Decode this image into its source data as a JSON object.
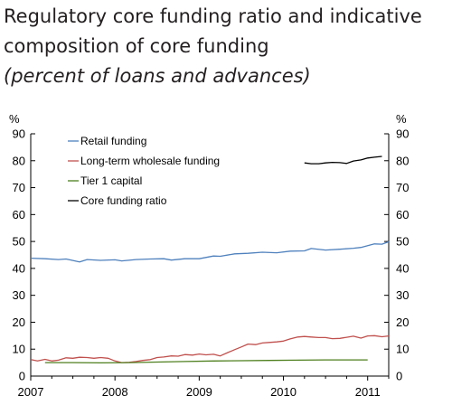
{
  "title_lines": [
    "Regulatory core funding ratio and indicative",
    "composition of core funding"
  ],
  "subtitle": "(percent of loans and advances)",
  "chart_data": {
    "type": "line",
    "title": "Regulatory core funding ratio and indicative composition of core funding",
    "subtitle": "(percent of loans and advances)",
    "xlabel": "",
    "ylabel_left": "%",
    "ylabel_right": "%",
    "xlim": [
      2007,
      2011.25
    ],
    "ylim": [
      0,
      90
    ],
    "x_ticks": [
      2007,
      2008,
      2009,
      2010,
      2011
    ],
    "y_ticks": [
      0,
      10,
      20,
      30,
      40,
      50,
      60,
      70,
      80,
      90
    ],
    "grid": false,
    "legend_position": "top-left",
    "series": [
      {
        "name": "Retail funding",
        "color": "#4f81bd",
        "x": [
          2007.0,
          2007.17,
          2007.33,
          2007.42,
          2007.58,
          2007.67,
          2007.83,
          2008.0,
          2008.08,
          2008.25,
          2008.42,
          2008.58,
          2008.67,
          2008.83,
          2009.0,
          2009.17,
          2009.25,
          2009.42,
          2009.58,
          2009.75,
          2009.92,
          2010.08,
          2010.25,
          2010.33,
          2010.5,
          2010.67,
          2010.83,
          2010.92,
          2011.08,
          2011.17,
          2011.25
        ],
        "y": [
          43.8,
          43.6,
          43.3,
          43.5,
          42.4,
          43.3,
          43.0,
          43.2,
          42.8,
          43.3,
          43.5,
          43.6,
          43.1,
          43.6,
          43.6,
          44.6,
          44.5,
          45.4,
          45.6,
          46.0,
          45.8,
          46.4,
          46.5,
          47.4,
          46.8,
          47.1,
          47.5,
          47.8,
          49.1,
          49.0,
          49.9
        ]
      },
      {
        "name": "Long-term wholesale funding",
        "color": "#c0504d",
        "x": [
          2007.0,
          2007.08,
          2007.17,
          2007.25,
          2007.33,
          2007.42,
          2007.5,
          2007.58,
          2007.67,
          2007.75,
          2007.83,
          2007.92,
          2008.0,
          2008.08,
          2008.17,
          2008.25,
          2008.33,
          2008.42,
          2008.5,
          2008.58,
          2008.67,
          2008.75,
          2008.83,
          2008.92,
          2009.0,
          2009.08,
          2009.17,
          2009.25,
          2009.33,
          2009.42,
          2009.5,
          2009.58,
          2009.67,
          2009.75,
          2009.83,
          2009.92,
          2010.0,
          2010.08,
          2010.17,
          2010.25,
          2010.33,
          2010.42,
          2010.5,
          2010.58,
          2010.67,
          2010.75,
          2010.83,
          2010.92,
          2011.0,
          2011.08,
          2011.17,
          2011.25
        ],
        "y": [
          6.1,
          5.6,
          6.2,
          5.6,
          5.9,
          6.8,
          6.6,
          7.0,
          6.9,
          6.6,
          6.9,
          6.6,
          5.6,
          5.0,
          5.1,
          5.4,
          5.8,
          6.1,
          6.9,
          7.1,
          7.5,
          7.4,
          8.0,
          7.8,
          8.2,
          7.9,
          8.1,
          7.5,
          8.6,
          9.8,
          10.8,
          11.9,
          11.7,
          12.3,
          12.5,
          12.7,
          13.0,
          13.8,
          14.5,
          14.7,
          14.5,
          14.3,
          14.3,
          13.9,
          14.0,
          14.4,
          14.8,
          14.1,
          14.9,
          15.0,
          14.6,
          14.9
        ]
      },
      {
        "name": "Tier 1 capital",
        "color": "#4e7f1e",
        "x": [
          2007.17,
          2007.5,
          2007.83,
          2008.17,
          2008.5,
          2008.83,
          2009.17,
          2009.5,
          2009.83,
          2010.17,
          2010.5,
          2010.83,
          2011.0
        ],
        "y": [
          5.0,
          5.0,
          4.9,
          5.0,
          5.2,
          5.4,
          5.6,
          5.7,
          5.8,
          5.9,
          6.0,
          6.0,
          6.0
        ]
      },
      {
        "name": "Core funding ratio",
        "color": "#000000",
        "x": [
          2010.25,
          2010.33,
          2010.42,
          2010.5,
          2010.58,
          2010.67,
          2010.75,
          2010.83,
          2010.92,
          2011.0,
          2011.08,
          2011.17
        ],
        "y": [
          79.2,
          78.9,
          78.9,
          79.2,
          79.4,
          79.3,
          79.0,
          79.9,
          80.3,
          81.0,
          81.3,
          81.6
        ]
      }
    ]
  }
}
